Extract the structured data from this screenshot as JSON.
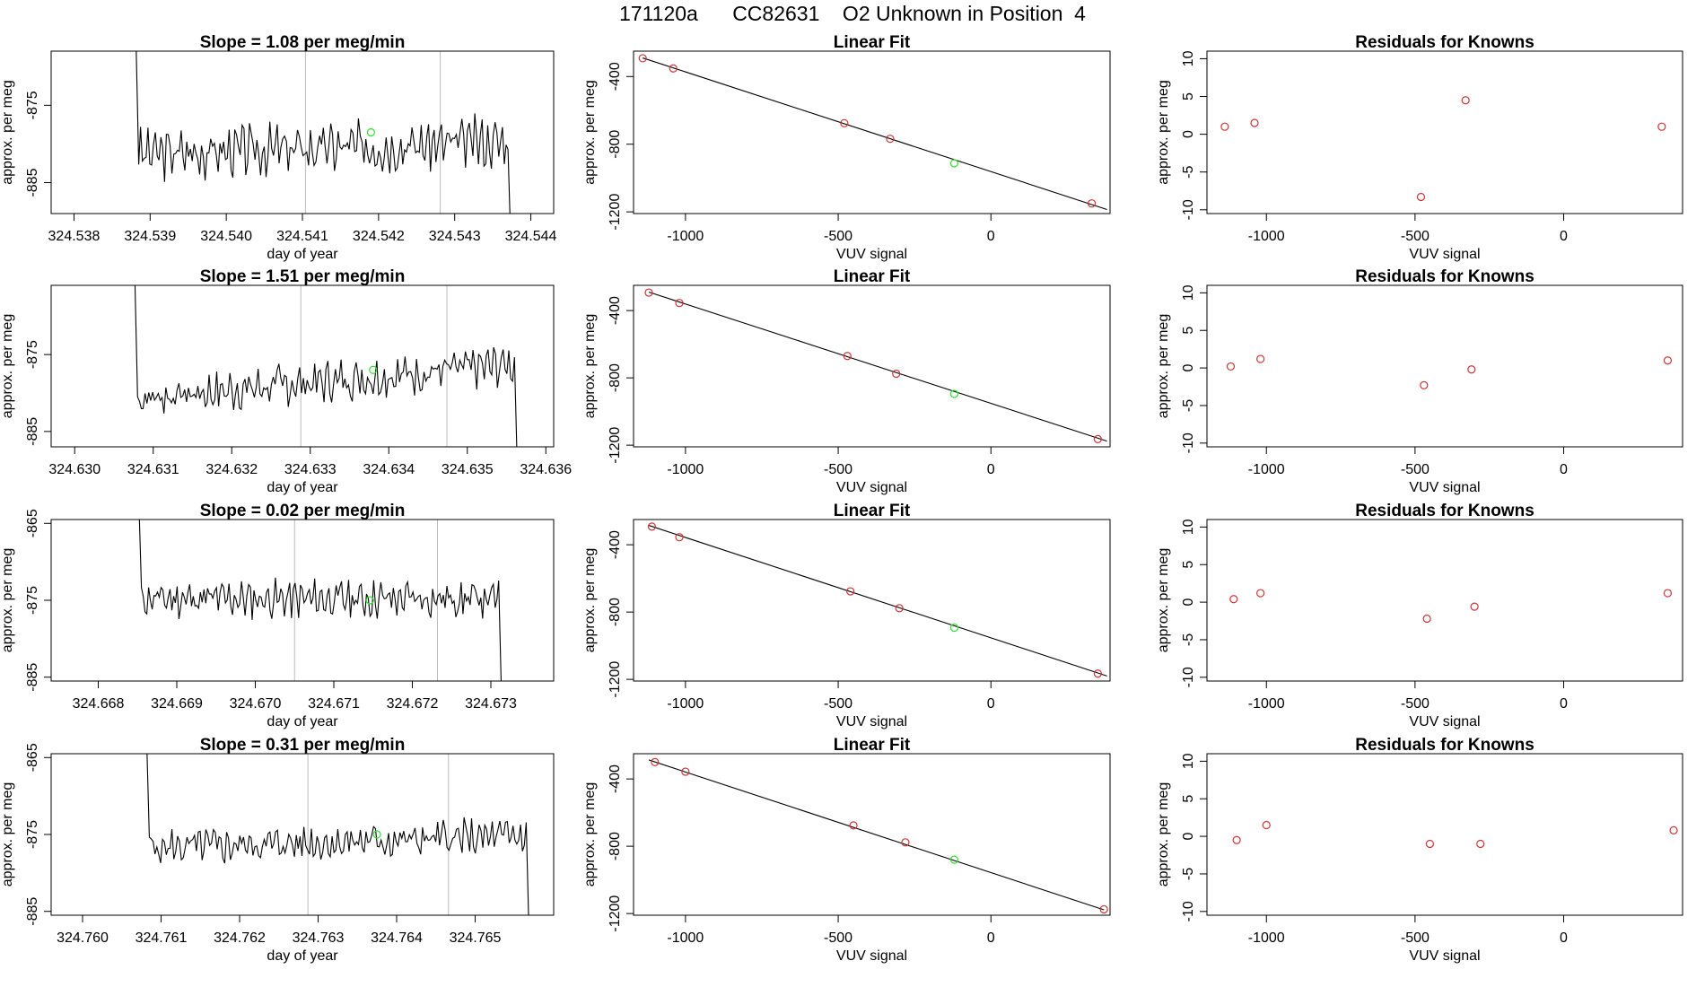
{
  "title": "171120a      CC82631    O2 Unknown in Position  4",
  "colors": {
    "trace": "#000000",
    "known": "#cd3333",
    "unknown": "#33dd33",
    "marker": "#bbbbbb",
    "fit": "#000000"
  },
  "chart_data": [
    {
      "type": "line",
      "title": "Slope =  1.08  per meg/min",
      "xlabel": "day of year",
      "ylabel": "approx. per meg",
      "xlim": [
        324.5377,
        324.5443
      ],
      "ylim": [
        -889,
        -868
      ],
      "xticks": [
        "324.538",
        "324.539",
        "324.540",
        "324.541",
        "324.542",
        "324.543",
        "324.544"
      ],
      "yticks": [
        "-875",
        "-885"
      ],
      "vlines": [
        324.54104,
        324.54281
      ],
      "start": 324.53885,
      "end": 324.5437,
      "base": -880.5,
      "trend": 1.6,
      "amp": 2.4,
      "seed": 3,
      "unknown_point": {
        "x": 324.5419,
        "y": -878.5
      }
    },
    {
      "type": "scatter",
      "title": "Linear Fit",
      "xlabel": "VUV signal",
      "ylabel": "approx. per meg",
      "xlim": [
        -1170,
        390
      ],
      "ylim": [
        -1210,
        -250
      ],
      "xticks": [
        "-1000",
        "-500",
        "0"
      ],
      "yticks": [
        "-400",
        "-800",
        "-1200"
      ],
      "fit_line": {
        "x": [
          -1140,
          380
        ],
        "y": [
          -290,
          -1186
        ]
      },
      "knowns": {
        "x": [
          -1140,
          -1040,
          -480,
          -330,
          330
        ],
        "y": [
          -292,
          -352,
          -676,
          -768,
          -1150
        ]
      },
      "unknown": {
        "x": -120,
        "y": -913
      }
    },
    {
      "type": "scatter",
      "title": "Residuals for Knowns",
      "xlabel": "VUV signal",
      "ylabel": "approx. per meg",
      "xlim": [
        -1200,
        400
      ],
      "ylim": [
        -10.5,
        11
      ],
      "xticks": [
        "-1000",
        "-500",
        "0"
      ],
      "yticks": [
        "10",
        "5",
        "0",
        "-5",
        "-10"
      ],
      "knowns": {
        "x": [
          -1140,
          -1040,
          -480,
          -330,
          330
        ],
        "y": [
          1.0,
          1.5,
          -8.3,
          4.5,
          1.0
        ]
      }
    },
    {
      "type": "line",
      "title": "Slope =  1.51  per meg/min",
      "xlabel": "day of year",
      "ylabel": "approx. per meg",
      "xlim": [
        324.6297,
        324.6361
      ],
      "ylim": [
        -887,
        -866
      ],
      "xticks": [
        "324.630",
        "324.631",
        "324.632",
        "324.633",
        "324.634",
        "324.635",
        "324.636"
      ],
      "yticks": [
        "-875",
        "-885"
      ],
      "vlines": [
        324.63288,
        324.63474
      ],
      "start": 324.6308,
      "end": 324.6356,
      "base": -878.5,
      "trend": 4.5,
      "amp": 2.0,
      "seed": 7,
      "unknown_point": {
        "x": 324.6338,
        "y": -877
      }
    },
    {
      "type": "scatter",
      "title": "Linear Fit",
      "xlabel": "VUV signal",
      "ylabel": "approx. per meg",
      "xlim": [
        -1170,
        390
      ],
      "ylim": [
        -1210,
        -250
      ],
      "xticks": [
        "-1000",
        "-500",
        "0"
      ],
      "yticks": [
        "-400",
        "-800",
        "-1200"
      ],
      "fit_line": {
        "x": [
          -1120,
          380
        ],
        "y": [
          -290,
          -1176
        ]
      },
      "knowns": {
        "x": [
          -1120,
          -1020,
          -470,
          -310,
          350
        ],
        "y": [
          -293,
          -355,
          -670,
          -775,
          -1164
        ]
      },
      "unknown": {
        "x": -120,
        "y": -895
      }
    },
    {
      "type": "scatter",
      "title": "Residuals for Knowns",
      "xlabel": "VUV signal",
      "ylabel": "approx. per meg",
      "xlim": [
        -1200,
        400
      ],
      "ylim": [
        -10.5,
        11
      ],
      "xticks": [
        "-1000",
        "-500",
        "0"
      ],
      "yticks": [
        "10",
        "5",
        "0",
        "-5",
        "-10"
      ],
      "knowns": {
        "x": [
          -1120,
          -1020,
          -470,
          -310,
          350
        ],
        "y": [
          0.2,
          1.2,
          -2.3,
          -0.2,
          1.0
        ]
      }
    },
    {
      "type": "line",
      "title": "Slope =  0.02  per meg/min",
      "xlabel": "day of year",
      "ylabel": "approx. per meg",
      "xlim": [
        324.6674,
        324.6738
      ],
      "ylim": [
        -885.5,
        -864.5
      ],
      "xticks": [
        "324.668",
        "324.669",
        "324.670",
        "324.671",
        "324.672",
        "324.673"
      ],
      "yticks": [
        "-865",
        "-875",
        "-885"
      ],
      "vlines": [
        324.6705,
        324.67232
      ],
      "start": 324.66855,
      "end": 324.6731,
      "base": -874.8,
      "trend": 0.0,
      "amp": 1.8,
      "seed": 11,
      "unknown_point": {
        "x": 324.67146,
        "y": -875
      }
    },
    {
      "type": "scatter",
      "title": "Linear Fit",
      "xlabel": "VUV signal",
      "ylabel": "approx. per meg",
      "xlim": [
        -1170,
        390
      ],
      "ylim": [
        -1210,
        -250
      ],
      "xticks": [
        "-1000",
        "-500",
        "0"
      ],
      "yticks": [
        "-400",
        "-800",
        "-1200"
      ],
      "fit_line": {
        "x": [
          -1120,
          380
        ],
        "y": [
          -285,
          -1180
        ]
      },
      "knowns": {
        "x": [
          -1110,
          -1020,
          -460,
          -300,
          350
        ],
        "y": [
          -292,
          -355,
          -677,
          -777,
          -1166
        ]
      },
      "unknown": {
        "x": -120,
        "y": -893
      }
    },
    {
      "type": "scatter",
      "title": "Residuals for Knowns",
      "xlabel": "VUV signal",
      "ylabel": "approx. per meg",
      "xlim": [
        -1200,
        400
      ],
      "ylim": [
        -10.5,
        11
      ],
      "xticks": [
        "-1000",
        "-500",
        "0"
      ],
      "yticks": [
        "10",
        "5",
        "0",
        "-5",
        "-10"
      ],
      "knowns": {
        "x": [
          -1110,
          -1020,
          -460,
          -300,
          350
        ],
        "y": [
          0.4,
          1.2,
          -2.2,
          -0.6,
          1.2
        ]
      }
    },
    {
      "type": "line",
      "title": "Slope =  0.31  per meg/min",
      "xlabel": "day of year",
      "ylabel": "approx. per meg",
      "xlim": [
        324.7596,
        324.766
      ],
      "ylim": [
        -885.5,
        -864.5
      ],
      "xticks": [
        "324.760",
        "324.761",
        "324.762",
        "324.763",
        "324.764",
        "324.765"
      ],
      "yticks": [
        "-865",
        "-875",
        "-885"
      ],
      "vlines": [
        324.76287,
        324.76466
      ],
      "start": 324.76085,
      "end": 324.76565,
      "base": -876,
      "trend": 1.5,
      "amp": 1.8,
      "seed": 5,
      "unknown_point": {
        "x": 324.76375,
        "y": -875
      }
    },
    {
      "type": "scatter",
      "title": "Linear Fit",
      "xlabel": "VUV signal",
      "ylabel": "approx. per meg",
      "xlim": [
        -1170,
        390
      ],
      "ylim": [
        -1210,
        -250
      ],
      "xticks": [
        "-1000",
        "-500",
        "0"
      ],
      "yticks": [
        "-400",
        "-800",
        "-1200"
      ],
      "fit_line": {
        "x": [
          -1120,
          370
        ],
        "y": [
          -287,
          -1178
        ]
      },
      "knowns": {
        "x": [
          -1100,
          -1000,
          -450,
          -280,
          370
        ],
        "y": [
          -300,
          -357,
          -676,
          -777,
          -1175
        ]
      },
      "unknown": {
        "x": -120,
        "y": -880
      }
    },
    {
      "type": "scatter",
      "title": "Residuals for Knowns",
      "xlabel": "VUV signal",
      "ylabel": "approx. per meg",
      "xlim": [
        -1200,
        400
      ],
      "ylim": [
        -10.5,
        11
      ],
      "xticks": [
        "-1000",
        "-500",
        "0"
      ],
      "yticks": [
        "10",
        "5",
        "0",
        "-5",
        "-10"
      ],
      "knowns": {
        "x": [
          -1100,
          -1000,
          -450,
          -280,
          370
        ],
        "y": [
          -0.5,
          1.5,
          -1.0,
          -1.0,
          0.8
        ]
      }
    }
  ]
}
